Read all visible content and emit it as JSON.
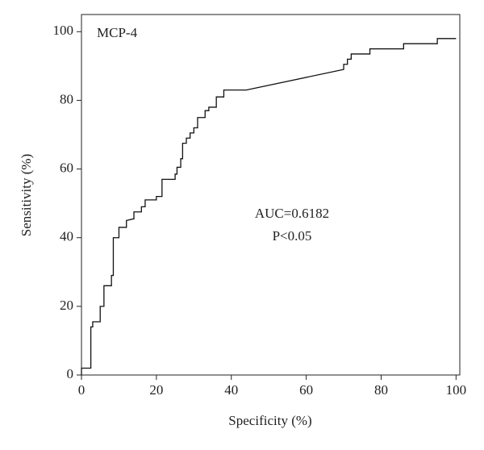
{
  "chart_data": {
    "type": "line",
    "annotations": [
      "MCP-4",
      "AUC=0.6182",
      "P<0.05"
    ],
    "x_label": "Specificity (%)",
    "y_label": "Sensitivity (%)",
    "xlim": [
      0,
      101
    ],
    "ylim": [
      0,
      105
    ],
    "xticks": [
      0,
      20,
      40,
      60,
      80,
      100
    ],
    "yticks": [
      0,
      20,
      40,
      60,
      80,
      100
    ],
    "series": [
      {
        "color": "#111111",
        "x": [
          0,
          0,
          2.5,
          2.5,
          3,
          3,
          5,
          5,
          6,
          6,
          8,
          8,
          8.5,
          8.5,
          10,
          10,
          12,
          12,
          14,
          14,
          16,
          16,
          17,
          17,
          20,
          20,
          21.5,
          21.5,
          25,
          25,
          25.5,
          25.5,
          26.5,
          26.5,
          27,
          27,
          28,
          28,
          29,
          29,
          30,
          30,
          31,
          31,
          33,
          33,
          34,
          34,
          36,
          36,
          38,
          38,
          44,
          70,
          70,
          71,
          71,
          72,
          72,
          77,
          77,
          86,
          86,
          95,
          95,
          100
        ],
        "values": [
          0,
          2,
          2,
          14,
          14,
          15.5,
          15.5,
          20,
          20,
          26,
          26,
          29,
          29,
          40,
          40,
          43,
          43,
          45,
          45.5,
          47.5,
          47.5,
          49,
          49,
          51,
          51,
          52,
          52,
          57,
          57,
          58.5,
          58.5,
          60.5,
          60.5,
          63,
          63,
          67.5,
          67.5,
          69,
          69,
          70.5,
          70.5,
          72,
          72,
          75,
          75,
          77,
          77,
          78,
          78,
          81,
          81,
          83,
          83,
          89,
          90.5,
          90.5,
          92,
          92,
          93.5,
          93.5,
          95,
          95,
          96.5,
          96.5,
          98,
          98
        ]
      }
    ]
  }
}
